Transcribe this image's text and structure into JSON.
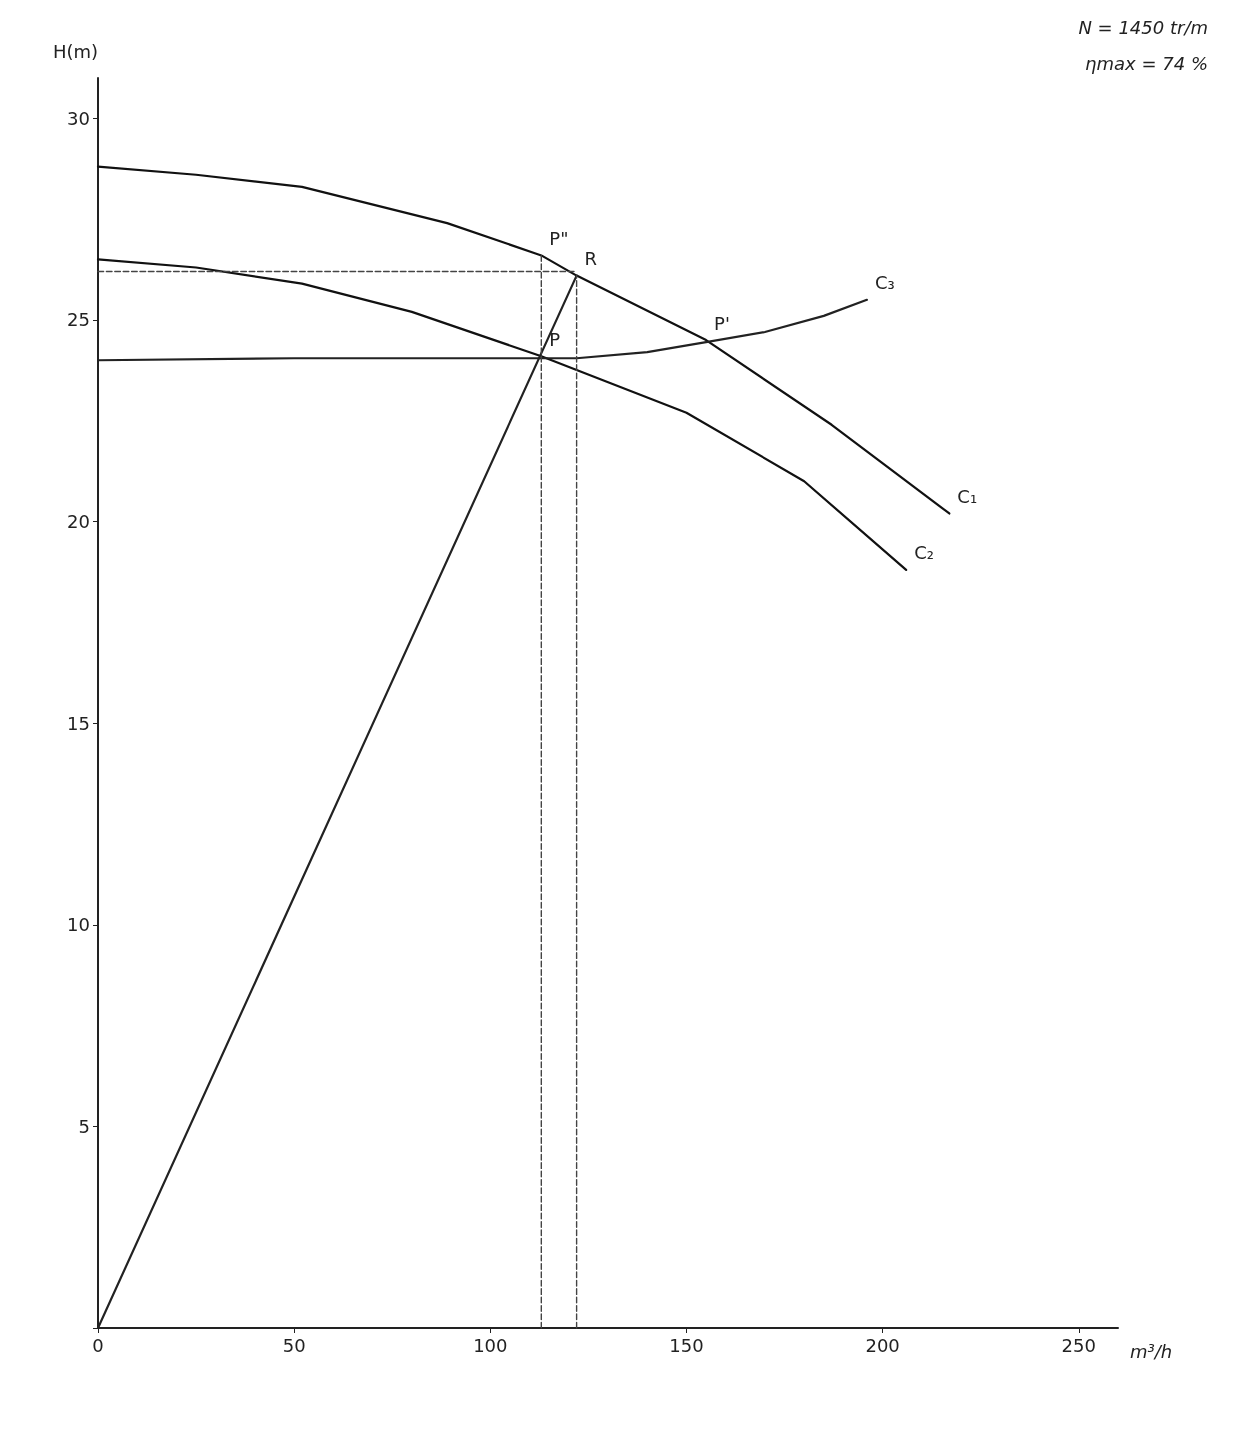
{
  "chart_data": {
    "type": "line",
    "xlabel": "m³/h",
    "ylabel": "H(m)",
    "xlim": [
      0,
      260
    ],
    "xticks": [
      0,
      50,
      100,
      150,
      200,
      250
    ],
    "ylim": [
      0,
      31
    ],
    "yticks": [
      {
        "value": 0,
        "label": null
      },
      5,
      10,
      15,
      20,
      25,
      30
    ],
    "grid": false,
    "marker": "none",
    "series": [
      {
        "color": "#111111",
        "x": [
          0,
          25,
          52,
          89,
          113,
          122,
          155,
          187,
          217
        ],
        "values": [
          28.8,
          28.6,
          28.3,
          27.4,
          26.6,
          26.1,
          24.5,
          22.4,
          20.2
        ]
      },
      {
        "color": "#111111",
        "x": [
          0,
          25,
          52,
          80,
          113,
          150,
          180,
          206
        ],
        "values": [
          26.5,
          26.3,
          25.9,
          25.2,
          24.1,
          22.7,
          21.0,
          18.8
        ]
      },
      {
        "color": "#222222",
        "x": [
          0,
          50,
          100,
          122,
          140,
          155,
          170,
          185,
          196
        ],
        "values": [
          24.0,
          24.05,
          24.05,
          24.05,
          24.2,
          24.45,
          24.7,
          25.1,
          25.5
        ]
      },
      {
        "color": "#222222",
        "x": [
          0,
          122
        ],
        "values": [
          0,
          26.1
        ]
      },
      {
        "color": "#444444",
        "line_style": "dashed",
        "x": [
          113,
          113
        ],
        "values": [
          0,
          26.6
        ]
      },
      {
        "color": "#444444",
        "line_style": "dashed",
        "x": [
          122,
          122
        ],
        "values": [
          0,
          26.1
        ]
      },
      {
        "color": "#444444",
        "line_style": "dashed",
        "x": [
          0,
          122
        ],
        "values": [
          26.2,
          26.2
        ]
      }
    ],
    "annotations": [
      {
        "text": "P\"",
        "x": 113,
        "y": 26.6
      },
      {
        "text": "R",
        "x": 122,
        "y": 26.1
      },
      {
        "text": "P",
        "x": 113,
        "y": 24.1
      },
      {
        "text": "P'",
        "x": 155,
        "y": 24.5
      },
      {
        "text": "C₃",
        "x": 196,
        "y": 25.5
      },
      {
        "text": "C₁",
        "x": 217,
        "y": 20.2
      },
      {
        "text": "C₂",
        "x": 206,
        "y": 18.8
      },
      "N = 1450 tr/m",
      "ηmax = 74 %"
    ]
  }
}
